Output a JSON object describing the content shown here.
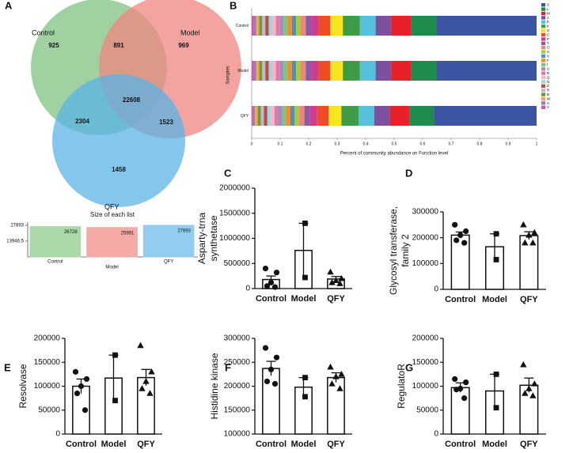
{
  "chart_data": [
    {
      "type": "venn",
      "panel": "A",
      "sets": [
        "Control",
        "Model",
        "QFY"
      ],
      "set_colors": [
        "#7fc282",
        "#f08680",
        "#5bb3e6"
      ],
      "values": [
        925,
        969,
        1458,
        891,
        2304,
        1523,
        22608
      ]
    },
    {
      "type": "bar",
      "title": "Size of each list",
      "categories": [
        "Control",
        "Model",
        "QFY"
      ],
      "values": [
        26728,
        25991,
        27893
      ],
      "colors": [
        "#a9d8a9",
        "#f6aaa6",
        "#92cdf0"
      ],
      "ylim": [
        0,
        27893
      ],
      "yticks": [
        13946.5,
        27893
      ]
    },
    {
      "type": "stacked_barh",
      "panel": "B",
      "categories": [
        "Control",
        "Model",
        "QFY"
      ],
      "ylabel": "Samples",
      "xlabel": "Percent of community abundance on Function level",
      "xlim": [
        0,
        1
      ],
      "xticks": [
        0,
        0.1,
        0.2,
        0.3,
        0.4,
        0.5,
        0.6,
        0.7,
        0.8,
        0.9,
        1
      ],
      "series": [
        {
          "name": "S",
          "color": "#3b55a3",
          "values": [
            0.35,
            0.35,
            0.36
          ]
        },
        {
          "name": "L",
          "color": "#1f8b4c",
          "values": [
            0.09,
            0.09,
            0.085
          ]
        },
        {
          "name": "M",
          "color": "#e8202a",
          "values": [
            0.07,
            0.07,
            0.07
          ]
        },
        {
          "name": "J",
          "color": "#7d4f9f",
          "values": [
            0.055,
            0.055,
            0.055
          ]
        },
        {
          "name": "E",
          "color": "#55c1dd",
          "values": [
            0.055,
            0.055,
            0.055
          ]
        },
        {
          "name": "K",
          "color": "#3e9b47",
          "values": [
            0.06,
            0.06,
            0.06
          ]
        },
        {
          "name": "G",
          "color": "#f6e51f",
          "values": [
            0.045,
            0.045,
            0.045
          ]
        },
        {
          "name": "C",
          "color": "#ef4b24",
          "values": [
            0.04,
            0.04,
            0.04
          ]
        },
        {
          "name": "P",
          "color": "#d23c8f",
          "values": [
            0.025,
            0.025,
            0.025
          ]
        },
        {
          "name": "T",
          "color": "#8e58a6",
          "values": [
            0.02,
            0.02,
            0.02
          ]
        },
        {
          "name": "O",
          "color": "#e98874",
          "values": [
            0.018,
            0.018,
            0.018
          ]
        },
        {
          "name": "H",
          "color": "#a5cd39",
          "values": [
            0.016,
            0.016,
            0.016
          ]
        },
        {
          "name": "V",
          "color": "#4a8ecb",
          "values": [
            0.015,
            0.015,
            0.015
          ]
        },
        {
          "name": "F",
          "color": "#f28d2a",
          "values": [
            0.015,
            0.015,
            0.015
          ]
        },
        {
          "name": "I",
          "color": "#7fc47f",
          "values": [
            0.014,
            0.014,
            0.014
          ]
        },
        {
          "name": "U",
          "color": "#a48cc2",
          "values": [
            0.014,
            0.014,
            0.014
          ]
        },
        {
          "name": "D",
          "color": "#e07ba6",
          "values": [
            0.013,
            0.013,
            0.013
          ]
        },
        {
          "name": "Q",
          "color": "#f5b6c8",
          "values": [
            0.013,
            0.013,
            0.013
          ]
        },
        {
          "name": "N",
          "color": "#9fd3e8",
          "values": [
            0.012,
            0.012,
            0.012
          ]
        },
        {
          "name": "Z",
          "color": "#b5543a",
          "values": [
            0.012,
            0.012,
            0.012
          ]
        },
        {
          "name": "R",
          "color": "#c8b2d6",
          "values": [
            0.011,
            0.011,
            0.011
          ]
        },
        {
          "name": "B",
          "color": "#6a9d3a",
          "values": [
            0.011,
            0.011,
            0.011
          ]
        },
        {
          "name": "W",
          "color": "#f2a55f",
          "values": [
            0.01,
            0.01,
            0.01
          ]
        },
        {
          "name": "A",
          "color": "#8f7fc0",
          "values": [
            0.008,
            0.008,
            0.008
          ]
        },
        {
          "name": "Y",
          "color": "#cf5aa0",
          "values": [
            0.008,
            0.008,
            0.003
          ]
        }
      ]
    },
    {
      "type": "dotbar",
      "panel": "C",
      "ylabel": [
        "Asparty-trna",
        "synthetase"
      ],
      "categories": [
        "Control",
        "Model",
        "QFY"
      ],
      "markers": [
        "circle",
        "square",
        "triangle"
      ],
      "values": [
        180000,
        760000,
        190000
      ],
      "errors": [
        70000,
        540000,
        50000
      ],
      "points": [
        [
          400000,
          320000,
          120000,
          50000,
          30000
        ],
        [
          1300000,
          220000
        ],
        [
          330000,
          200000,
          160000,
          120000,
          100000
        ]
      ],
      "ylim": [
        0,
        2000000
      ],
      "yticks": [
        0,
        500000,
        1000000,
        1500000,
        2000000
      ]
    },
    {
      "type": "dotbar",
      "panel": "D",
      "ylabel": [
        "Glycosyl transferase,",
        "family 2"
      ],
      "categories": [
        "Control",
        "Model",
        "QFY"
      ],
      "markers": [
        "circle",
        "square",
        "triangle"
      ],
      "values": [
        210000,
        165000,
        208000
      ],
      "errors": [
        12000,
        50000,
        15000
      ],
      "points": [
        [
          250000,
          225000,
          210000,
          190000,
          180000
        ],
        [
          215000,
          115000
        ],
        [
          250000,
          220000,
          210000,
          180000,
          180000
        ]
      ],
      "ylim": [
        0,
        300000
      ],
      "yticks": [
        0,
        100000,
        200000,
        300000
      ]
    },
    {
      "type": "dotbar",
      "panel": "E",
      "ylabel": [
        "Resolvase"
      ],
      "categories": [
        "Control",
        "Model",
        "QFY"
      ],
      "markers": [
        "circle",
        "square",
        "triangle"
      ],
      "values": [
        100000,
        117000,
        118000
      ],
      "errors": [
        15000,
        48000,
        17000
      ],
      "points": [
        [
          130000,
          115000,
          100000,
          85000,
          50000
        ],
        [
          165000,
          70000
        ],
        [
          185000,
          130000,
          110000,
          95000,
          85000
        ]
      ],
      "ylim": [
        0,
        200000
      ],
      "yticks": [
        0,
        50000,
        100000,
        150000,
        200000
      ]
    },
    {
      "type": "dotbar",
      "panel": "F",
      "ylabel": [
        "Histidine kinase"
      ],
      "categories": [
        "Control",
        "Model",
        "QFY"
      ],
      "markers": [
        "circle",
        "square",
        "triangle"
      ],
      "values": [
        237000,
        198000,
        218000
      ],
      "errors": [
        15000,
        20000,
        10000
      ],
      "points": [
        [
          280000,
          260000,
          235000,
          210000,
          205000
        ],
        [
          218000,
          178000
        ],
        [
          240000,
          225000,
          220000,
          205000,
          195000
        ]
      ],
      "ylim": [
        100000,
        300000
      ],
      "yticks": [
        100000,
        150000,
        200000,
        250000,
        300000
      ]
    },
    {
      "type": "dotbar",
      "panel": "G",
      "ylabel": [
        "RegulatoR"
      ],
      "categories": [
        "Control",
        "Model",
        "QFY"
      ],
      "markers": [
        "circle",
        "square",
        "triangle"
      ],
      "values": [
        97000,
        90000,
        102000
      ],
      "errors": [
        10000,
        35000,
        15000
      ],
      "points": [
        [
          115000,
          108000,
          95000,
          93000,
          75000
        ],
        [
          125000,
          55000
        ],
        [
          145000,
          105000,
          95000,
          85000,
          80000
        ]
      ],
      "ylim": [
        0,
        200000
      ],
      "yticks": [
        0,
        50000,
        100000,
        150000,
        200000
      ]
    }
  ]
}
